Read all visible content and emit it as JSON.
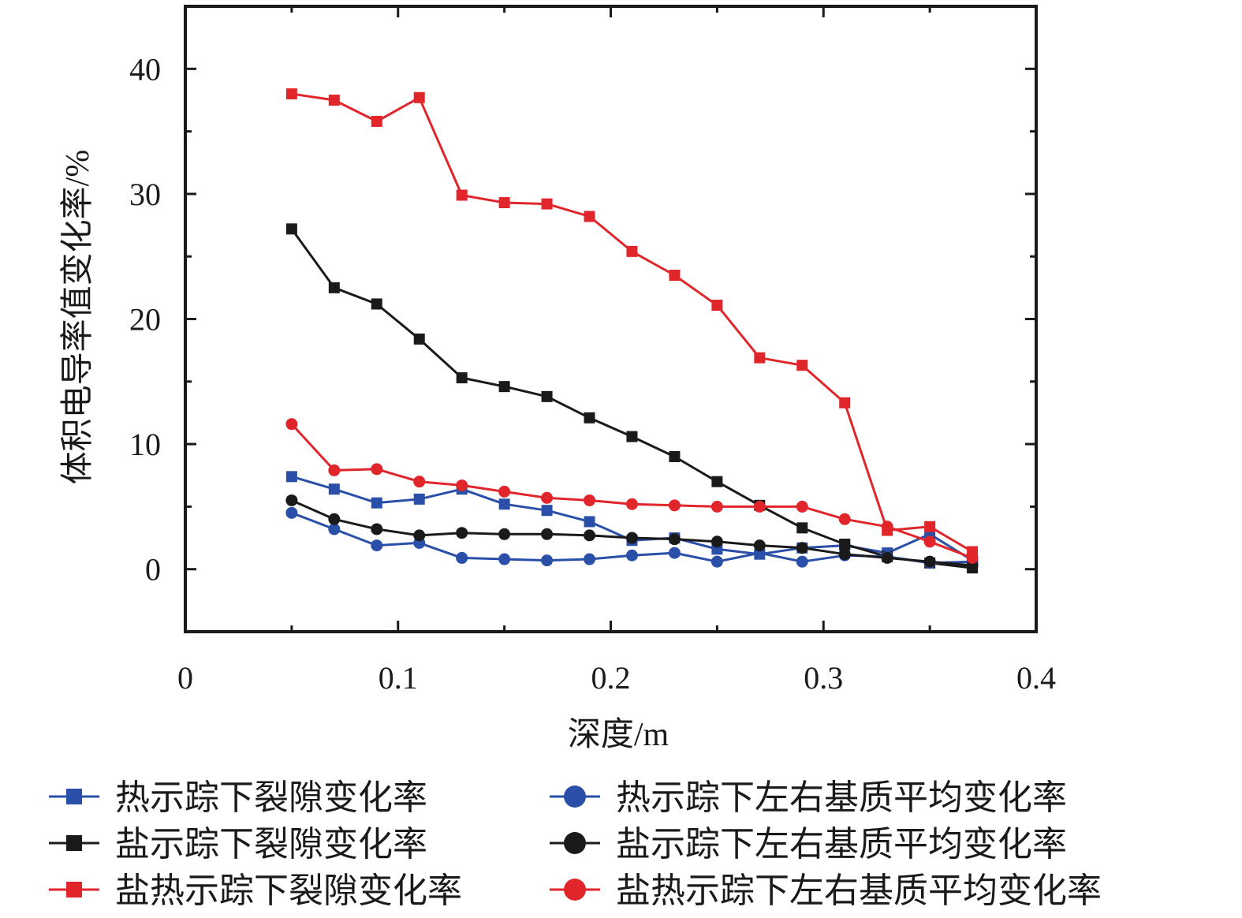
{
  "chart_data": {
    "type": "line",
    "xlabel": "深度/m",
    "ylabel": "体积电导率值变化率/%",
    "xlim": [
      0,
      0.4
    ],
    "ylim": [
      -5,
      45
    ],
    "xticks": [
      0,
      0.1,
      0.2,
      0.3,
      0.4
    ],
    "xtick_labels": [
      "0",
      "0.1",
      "0.2",
      "0.3",
      "0.4"
    ],
    "yticks": [
      0,
      10,
      20,
      30,
      40
    ],
    "ytick_labels": [
      "0",
      "10",
      "20",
      "30",
      "40"
    ],
    "grid": false,
    "legend_position": "bottom",
    "x": [
      0.05,
      0.07,
      0.09,
      0.11,
      0.13,
      0.15,
      0.17,
      0.19,
      0.21,
      0.23,
      0.25,
      0.27,
      0.29,
      0.31,
      0.33,
      0.35,
      0.37
    ],
    "series": [
      {
        "name": "热示踪下裂隙变化率",
        "color": "#2a4fa8",
        "marker": "square",
        "values": [
          7.4,
          6.4,
          5.3,
          5.6,
          6.4,
          5.2,
          4.7,
          3.8,
          2.3,
          2.5,
          1.6,
          1.2,
          1.7,
          1.9,
          1.3,
          2.8,
          0.7
        ]
      },
      {
        "name": "盐示踪下裂隙变化率",
        "color": "#1a1a1a",
        "marker": "square",
        "values": [
          27.2,
          22.5,
          21.2,
          18.4,
          15.3,
          14.6,
          13.8,
          12.1,
          10.6,
          9.0,
          7.0,
          5.1,
          3.3,
          2.0,
          1.0,
          0.5,
          0.1
        ]
      },
      {
        "name": "盐热示踪下裂隙变化率",
        "color": "#e0262b",
        "marker": "square",
        "values": [
          38.0,
          37.5,
          35.8,
          37.7,
          29.9,
          29.3,
          29.2,
          28.2,
          25.4,
          23.5,
          21.1,
          16.9,
          16.3,
          13.3,
          3.1,
          3.4,
          1.4
        ]
      },
      {
        "name": "热示踪下左右基质平均变化率",
        "color": "#2a4fa8",
        "marker": "circle",
        "values": [
          4.5,
          3.2,
          1.9,
          2.1,
          0.9,
          0.8,
          0.7,
          0.8,
          1.1,
          1.3,
          0.6,
          1.3,
          0.6,
          1.1,
          1.0,
          0.5,
          0.6
        ]
      },
      {
        "name": "盐示踪下左右基质平均变化率",
        "color": "#1a1a1a",
        "marker": "circle",
        "values": [
          5.5,
          4.0,
          3.2,
          2.7,
          2.9,
          2.8,
          2.8,
          2.7,
          2.5,
          2.4,
          2.2,
          1.9,
          1.7,
          1.2,
          0.9,
          0.6,
          0.3
        ]
      },
      {
        "name": "盐热示踪下左右基质平均变化率",
        "color": "#e0262b",
        "marker": "circle",
        "values": [
          11.6,
          7.9,
          8.0,
          7.0,
          6.7,
          6.2,
          5.7,
          5.5,
          5.2,
          5.1,
          5.0,
          5.0,
          5.0,
          4.0,
          3.4,
          2.2,
          0.9
        ]
      }
    ]
  }
}
